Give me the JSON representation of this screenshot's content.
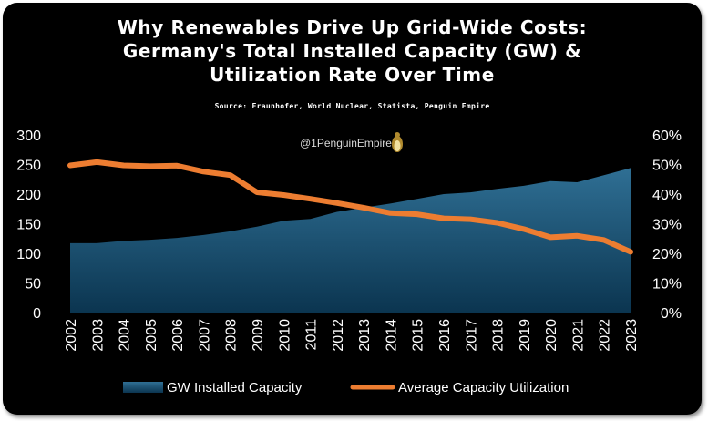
{
  "header": {
    "title_lines": [
      "Why Renewables Drive Up Grid-Wide Costs:",
      "Germany's Total Installed Capacity (GW) &",
      "Utilization Rate Over Time"
    ],
    "source": "Source: Fraunhofer, World Nuclear, Statista, Penguin Empire",
    "watermark": "@1PenguinEmpire"
  },
  "colors": {
    "background": "#000000",
    "area_top": "#2f6f94",
    "area_bottom": "#0b3550",
    "line": "#ed7d31",
    "text": "#ffffff"
  },
  "chart_data": {
    "type": "area",
    "categories": [
      "2002",
      "2003",
      "2004",
      "2005",
      "2006",
      "2007",
      "2008",
      "2009",
      "2010",
      "2011",
      "2012",
      "2013",
      "2014",
      "2015",
      "2016",
      "2017",
      "2018",
      "2019",
      "2020",
      "2021",
      "2022",
      "2023"
    ],
    "series": [
      {
        "name": "GW Installed Capacity",
        "type": "area",
        "axis": "left",
        "values": [
          117,
          117,
          121,
          123,
          126,
          131,
          137,
          145,
          155,
          158,
          170,
          177,
          184,
          192,
          200,
          203,
          209,
          214,
          222,
          220,
          232,
          244
        ]
      },
      {
        "name": "Average Capacity Utilization",
        "type": "line",
        "axis": "right",
        "values": [
          0.497,
          0.508,
          0.497,
          0.494,
          0.496,
          0.476,
          0.464,
          0.406,
          0.397,
          0.384,
          0.37,
          0.354,
          0.336,
          0.332,
          0.318,
          0.315,
          0.303,
          0.282,
          0.254,
          0.259,
          0.245,
          0.205
        ]
      }
    ],
    "left_axis": {
      "ylim": [
        0,
        300
      ],
      "ticks": [
        0,
        50,
        100,
        150,
        200,
        250,
        300
      ],
      "tick_labels": [
        "0",
        "50",
        "100",
        "150",
        "200",
        "250",
        "300"
      ]
    },
    "right_axis": {
      "ylim": [
        0,
        0.6
      ],
      "ticks": [
        0,
        0.1,
        0.2,
        0.3,
        0.4,
        0.5,
        0.6
      ],
      "tick_labels": [
        "0%",
        "10%",
        "20%",
        "30%",
        "40%",
        "50%",
        "60%"
      ]
    },
    "grid": false,
    "legend": "bottom"
  }
}
